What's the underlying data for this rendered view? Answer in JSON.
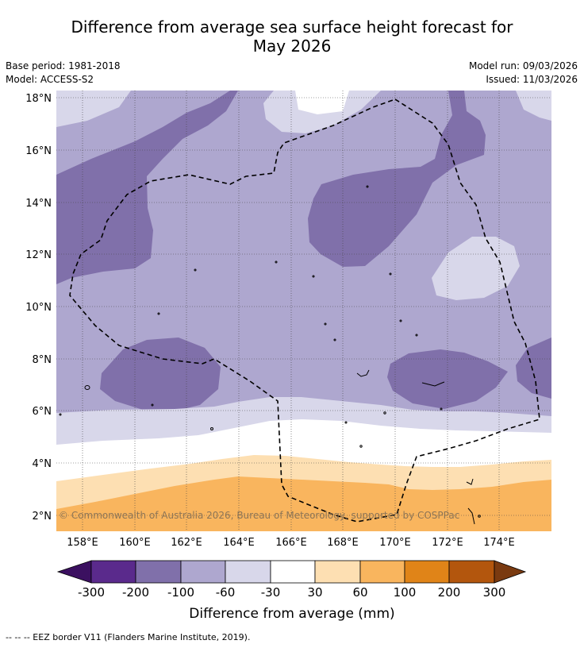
{
  "title": {
    "line1": "Difference from average sea surface height forecast for",
    "line2": "May 2026"
  },
  "meta": {
    "base_period": "Base period: 1981-2018",
    "model": "Model: ACCESS-S2",
    "model_run": "Model run: 09/03/2026",
    "issued": "Issued: 11/03/2026"
  },
  "map": {
    "lat_ticks": [
      "18°N",
      "16°N",
      "14°N",
      "12°N",
      "10°N",
      "8°N",
      "6°N",
      "4°N",
      "2°N"
    ],
    "lon_ticks": [
      "158°E",
      "160°E",
      "162°E",
      "164°E",
      "166°E",
      "168°E",
      "170°E",
      "172°E",
      "174°E"
    ],
    "copyright": "© Commonwealth of Australia 2026, Bureau of Meteorology, supported by COSPPac",
    "colors": {
      "level_-300_-200": "#5a2a8c",
      "level_-200_-100": "#8070aa",
      "level_-100_-60": "#aea7cf",
      "level_-60_-30": "#d8d7ea",
      "level_-30_30": "#ffffff",
      "level_30_60": "#fddfb2",
      "level_60_100": "#f9b55e",
      "level_100_200": "#e08418",
      "level_200_300": "#b3560d",
      "over": "#7a3a10",
      "under": "#3b1060"
    }
  },
  "colorbar": {
    "ticks": [
      "-300",
      "-200",
      "-100",
      "-60",
      "-30",
      "30",
      "60",
      "100",
      "200",
      "300"
    ],
    "label": "Difference from average (mm)"
  },
  "footnote": "--  --  -- EEZ border V11 (Flanders Marine Institute, 2019)."
}
